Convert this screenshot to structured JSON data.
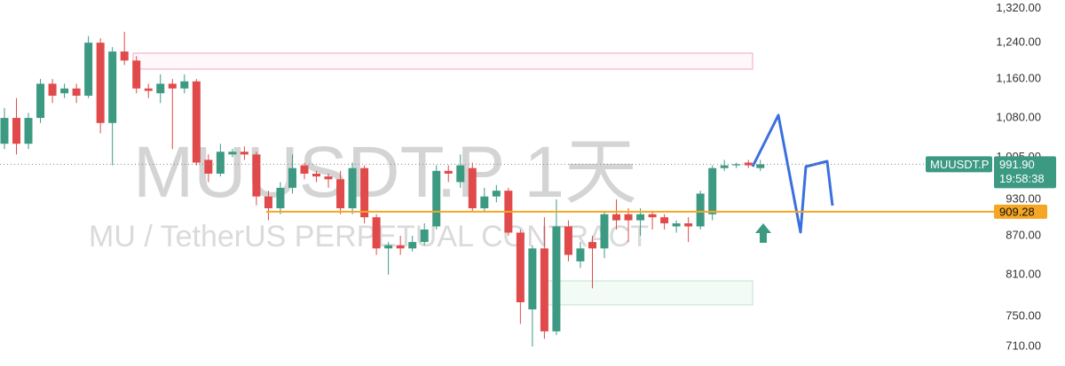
{
  "chart_data": {
    "type": "candlestick",
    "watermark": {
      "symbol_interval": "MUUSDT.P 1天",
      "description": "MU / TetherUS PERPETUAL CONTRACT"
    },
    "categories": [
      null,
      null,
      null,
      null,
      null,
      null,
      null,
      null,
      null,
      null,
      null,
      null,
      null,
      null,
      null,
      null,
      null,
      null,
      null,
      null,
      null,
      null,
      null,
      null,
      null,
      null,
      null,
      null,
      null,
      null,
      null,
      null,
      null,
      null,
      null,
      null,
      null,
      null,
      null,
      null,
      null,
      null,
      null,
      null,
      null,
      null,
      null,
      null,
      null,
      null,
      null,
      null,
      null,
      null,
      null,
      null,
      null,
      null,
      null,
      null,
      null,
      null,
      null,
      null
    ],
    "open": [
      1030,
      1080,
      1030,
      1080,
      1150,
      1130,
      1140,
      1125,
      1240,
      1070,
      1220,
      1200,
      1140,
      1130,
      1150,
      1140,
      1155,
      1000,
      975,
      1010,
      1015,
      1010,
      935,
      915,
      950,
      990,
      975,
      970,
      965,
      915,
      985,
      900,
      850,
      855,
      850,
      860,
      885,
      980,
      960,
      985,
      915,
      935,
      945,
      875,
      760,
      850,
      730,
      885,
      830,
      860,
      850,
      905,
      905,
      895,
      905,
      900,
      885,
      890,
      885,
      905,
      985,
      990,
      995,
      985
    ],
    "high": [
      1100,
      1120,
      1090,
      1160,
      1160,
      1150,
      1150,
      1255,
      1250,
      1230,
      1265,
      1210,
      1150,
      1170,
      1160,
      1170,
      1160,
      1010,
      1030,
      1020,
      1025,
      1015,
      945,
      960,
      1010,
      995,
      980,
      975,
      980,
      995,
      990,
      905,
      860,
      870,
      870,
      890,
      990,
      990,
      1010,
      995,
      950,
      955,
      950,
      880,
      855,
      900,
      930,
      895,
      860,
      870,
      910,
      930,
      915,
      915,
      910,
      905,
      895,
      900,
      945,
      990,
      1000,
      995,
      1000,
      1000
    ],
    "low": [
      1020,
      1010,
      1020,
      1070,
      1110,
      1120,
      1110,
      1120,
      1050,
      990,
      1190,
      1130,
      1120,
      1110,
      1020,
      1130,
      990,
      960,
      970,
      1005,
      1000,
      920,
      895,
      905,
      940,
      965,
      960,
      950,
      905,
      905,
      890,
      840,
      810,
      840,
      845,
      855,
      880,
      960,
      950,
      910,
      910,
      925,
      870,
      740,
      710,
      720,
      725,
      830,
      820,
      790,
      835,
      880,
      860,
      870,
      880,
      880,
      875,
      860,
      880,
      895,
      980,
      985,
      985,
      980
    ],
    "close": [
      1080,
      1030,
      1080,
      1150,
      1125,
      1140,
      1125,
      1240,
      1070,
      1220,
      1200,
      1140,
      1135,
      1150,
      1140,
      1155,
      995,
      975,
      1015,
      1015,
      1010,
      935,
      915,
      950,
      985,
      975,
      970,
      965,
      915,
      985,
      900,
      850,
      855,
      850,
      860,
      880,
      980,
      975,
      990,
      915,
      935,
      945,
      875,
      770,
      850,
      730,
      885,
      840,
      850,
      850,
      905,
      895,
      895,
      905,
      900,
      890,
      890,
      885,
      940,
      985,
      990,
      992,
      990,
      991.9
    ],
    "up_color": "#3d9a82",
    "down_color": "#e04a4a",
    "log_scale": true,
    "ylim": [
      685,
      1341
    ],
    "yticks": [
      {
        "value": 1320,
        "label": "1,320.00"
      },
      {
        "value": 1240,
        "label": "1,240.00"
      },
      {
        "value": 1160,
        "label": "1,160.00"
      },
      {
        "value": 1080,
        "label": "1,080.00"
      },
      {
        "value": 1005,
        "label": "1,005.00"
      },
      {
        "value": 930,
        "label": "930.00"
      },
      {
        "value": 870,
        "label": "870.00"
      },
      {
        "value": 810,
        "label": "810.00"
      },
      {
        "value": 750,
        "label": "750.00"
      },
      {
        "value": 710,
        "label": "710.00"
      }
    ],
    "last_price": {
      "symbol": "MUUSDT.P",
      "value": 991.9,
      "label": "991.90",
      "countdown": "19:58:38",
      "color": "#3d9a82"
    },
    "price_line": {
      "value": 909.28,
      "color": "#f5a623"
    }
  }
}
